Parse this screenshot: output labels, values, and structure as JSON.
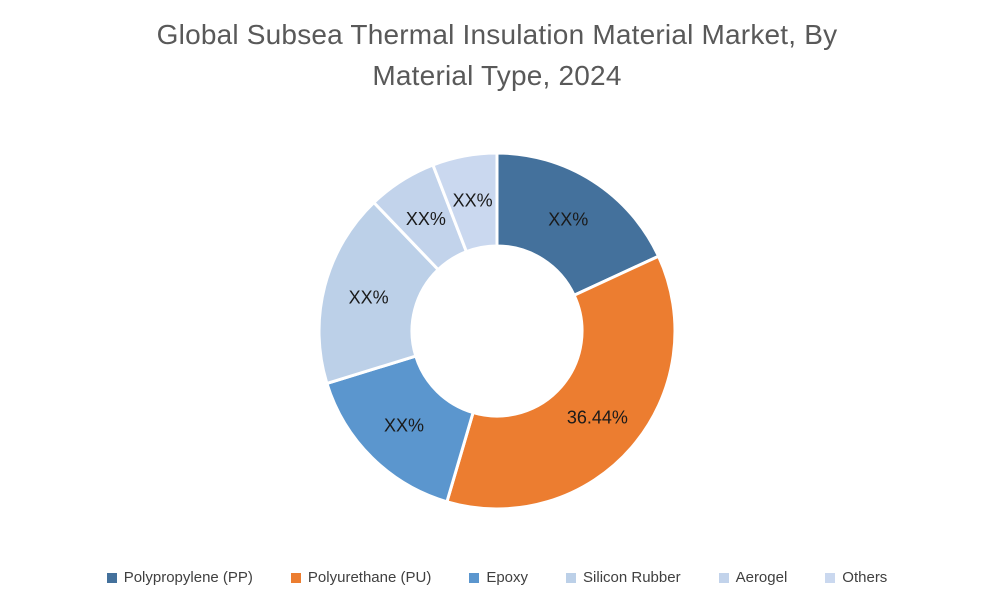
{
  "title": {
    "line1": "Global Subsea Thermal Insulation Material Market, By",
    "line2": "Material Type, 2024",
    "color": "#595959"
  },
  "chart_data": {
    "type": "pie",
    "subtype": "donut",
    "title": "Global Subsea Thermal Insulation Material Market, By Material Type, 2024",
    "title_lines": [
      "Global Subsea Thermal Insulation Material Market, By",
      "Material Type, 2024"
    ],
    "categories": [
      "Polypropylene (PP)",
      "Polyurethane (PU)",
      "Epoxy",
      "Silicon Rubber",
      "Aerogel",
      "Others"
    ],
    "labels_shown": [
      "XX%",
      "36.44%",
      "XX%",
      "XX%",
      "XX%",
      "XX%"
    ],
    "values_pct_estimated": [
      18.1,
      36.44,
      15.7,
      17.6,
      6.3,
      5.86
    ],
    "colors": [
      "#44719C",
      "#EC7D30",
      "#5B96CE",
      "#BCD0E8",
      "#C2D3EB",
      "#CAD8EF"
    ],
    "disclosed_value_note": "Only Polyurethane (PU) share is disclosed as 36.44%; other slices are masked as XX%",
    "donut_hole_ratio": 0.48,
    "start_angle_deg_from_top": 0,
    "direction": "clockwise",
    "slice_separator_color": "#ffffff",
    "label_color": "#1a1a1a",
    "legend_position": "bottom",
    "grid": false
  },
  "legend": {
    "items": [
      {
        "label": "Polypropylene (PP)",
        "color": "#44719C"
      },
      {
        "label": "Polyurethane (PU)",
        "color": "#EC7D30"
      },
      {
        "label": "Epoxy",
        "color": "#5B96CE"
      },
      {
        "label": "Silicon Rubber",
        "color": "#BCD0E8"
      },
      {
        "label": "Aerogel",
        "color": "#C2D3EB"
      },
      {
        "label": "Others",
        "color": "#CAD8EF"
      }
    ]
  }
}
